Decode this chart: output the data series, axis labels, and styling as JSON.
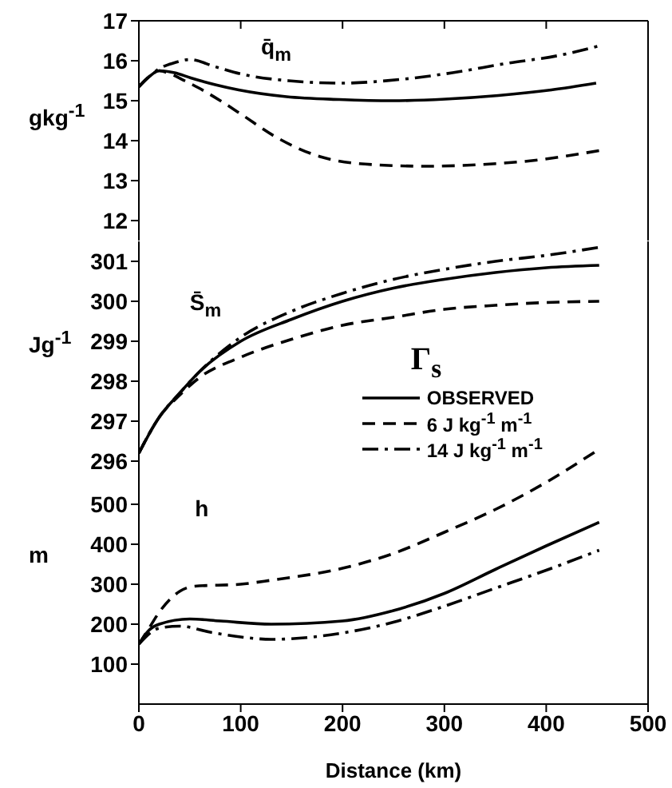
{
  "chart_data": [
    {
      "type": "line",
      "ylabel": "gkg$^{-1}$",
      "xlim": [
        0,
        500
      ],
      "xticks": [
        0,
        100,
        200,
        300,
        400,
        500
      ],
      "ylim": [
        11.5,
        17
      ],
      "yticks": [
        12,
        13,
        14,
        15,
        16,
        17
      ],
      "tick_labels": "y",
      "annotations": [
        "q̄$_{m}$"
      ],
      "series": [
        {
          "color": "#000000",
          "line_style": "solid",
          "x": [
            0,
            10,
            20,
            35,
            51,
            75,
            98,
            145,
            197,
            249,
            301,
            353,
            405,
            449
          ],
          "values": [
            15.35,
            15.6,
            15.75,
            15.7,
            15.57,
            15.4,
            15.27,
            15.1,
            15.03,
            15.0,
            15.04,
            15.13,
            15.27,
            15.44
          ]
        },
        {
          "color": "#000000",
          "line_style": "dashed",
          "x": [
            0,
            10,
            20,
            30,
            45,
            58,
            80,
            100,
            136,
            178,
            230,
            282,
            334,
            386,
            454
          ],
          "values": [
            15.35,
            15.6,
            15.75,
            15.68,
            15.5,
            15.33,
            15.0,
            14.67,
            14.07,
            13.6,
            13.4,
            13.36,
            13.4,
            13.5,
            13.76
          ]
        },
        {
          "color": "#000000",
          "line_style": "dashdot",
          "x": [
            0,
            10,
            20,
            35,
            50,
            75,
            100,
            147,
            199,
            256,
            308,
            360,
            412,
            452
          ],
          "values": [
            15.35,
            15.6,
            15.8,
            15.95,
            16.03,
            15.85,
            15.67,
            15.5,
            15.44,
            15.53,
            15.7,
            15.93,
            16.13,
            16.37
          ]
        }
      ]
    },
    {
      "type": "line",
      "ylabel": "Jg$^{-1}$",
      "xlim": [
        0,
        500
      ],
      "xticks": [
        0,
        100,
        200,
        300,
        400,
        500
      ],
      "ylim": [
        295.5,
        301.5
      ],
      "yticks": [
        296,
        297,
        298,
        299,
        300,
        301
      ],
      "tick_labels": "y",
      "legend": "right",
      "legend_title": "Γ$_{s}$",
      "annotations": [
        "S̄$_{m}$"
      ],
      "series": [
        {
          "name": "OBSERVED",
          "color": "#000000",
          "line_style": "solid",
          "x": [
            0,
            20,
            40,
            60,
            100,
            150,
            200,
            250,
            300,
            350,
            400,
            452
          ],
          "values": [
            296.2,
            297.1,
            297.7,
            298.25,
            299.0,
            299.55,
            300.0,
            300.33,
            300.55,
            300.72,
            300.84,
            300.9
          ]
        },
        {
          "name": "6 J kg$^{-1}$ m$^{-1}$",
          "color": "#000000",
          "line_style": "dashed",
          "x": [
            0,
            20,
            40,
            60,
            100,
            150,
            200,
            250,
            300,
            350,
            400,
            452
          ],
          "values": [
            296.2,
            297.1,
            297.65,
            298.1,
            298.6,
            299.05,
            299.4,
            299.6,
            299.8,
            299.9,
            299.97,
            300.0
          ]
        },
        {
          "name": "14 J kg$^{-1}$ m$^{-1}$",
          "color": "#000000",
          "line_style": "dashdot",
          "x": [
            0,
            20,
            40,
            60,
            100,
            150,
            200,
            250,
            300,
            350,
            400,
            452
          ],
          "values": [
            296.2,
            297.1,
            297.7,
            298.25,
            299.1,
            299.75,
            300.2,
            300.55,
            300.8,
            301.0,
            301.15,
            301.35
          ]
        }
      ]
    },
    {
      "type": "line",
      "ylabel": "m",
      "xlabel": "Distance (km)",
      "xlim": [
        0,
        500
      ],
      "xticks": [
        0,
        100,
        200,
        300,
        400,
        500
      ],
      "ylim": [
        0,
        650
      ],
      "yticks": [
        100,
        200,
        300,
        400,
        500
      ],
      "annotations": [
        "h"
      ],
      "series": [
        {
          "color": "#000000",
          "line_style": "solid",
          "x": [
            0,
            10,
            20,
            50,
            80,
            130,
            200,
            250,
            300,
            350,
            400,
            452
          ],
          "values": [
            150,
            185,
            200,
            213,
            208,
            200,
            208,
            234,
            277,
            337,
            396,
            455
          ]
        },
        {
          "color": "#000000",
          "line_style": "dashed",
          "x": [
            0,
            10,
            20,
            40,
            55,
            100,
            130,
            200,
            250,
            300,
            350,
            400,
            449
          ],
          "values": [
            150,
            190,
            230,
            282,
            295,
            300,
            310,
            340,
            377,
            430,
            487,
            555,
            633
          ]
        },
        {
          "color": "#000000",
          "line_style": "dashdot",
          "x": [
            0,
            20,
            40,
            70,
            100,
            130,
            200,
            250,
            300,
            350,
            400,
            452
          ],
          "values": [
            150,
            190,
            195,
            180,
            168,
            162,
            178,
            205,
            245,
            290,
            335,
            385
          ]
        }
      ]
    }
  ]
}
